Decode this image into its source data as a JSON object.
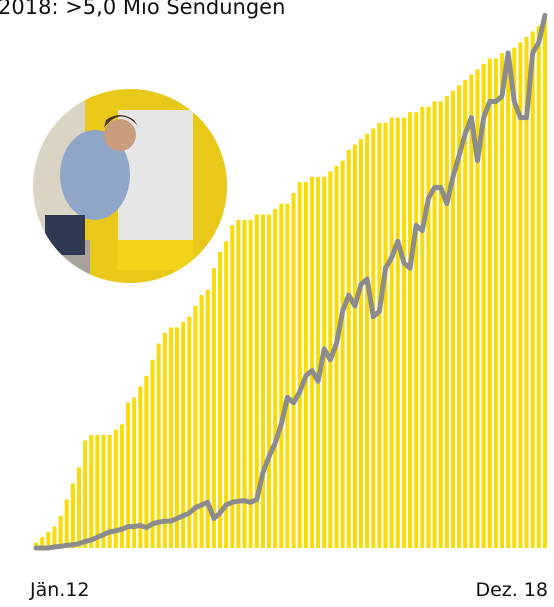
{
  "chart_data": {
    "type": "bar-line",
    "title": "2018: >5,0 Mio Sendungen",
    "categories": [
      "Jän.12",
      null,
      null,
      null,
      null,
      null,
      null,
      null,
      null,
      null,
      null,
      null,
      null,
      null,
      null,
      null,
      null,
      null,
      null,
      null,
      null,
      null,
      null,
      null,
      null,
      null,
      null,
      null,
      null,
      null,
      null,
      null,
      null,
      null,
      null,
      null,
      null,
      null,
      null,
      null,
      null,
      null,
      null,
      null,
      null,
      null,
      null,
      null,
      null,
      null,
      null,
      null,
      null,
      null,
      null,
      null,
      null,
      null,
      null,
      null,
      null,
      null,
      null,
      null,
      null,
      null,
      null,
      null,
      null,
      null,
      null,
      null,
      null,
      null,
      null,
      null,
      null,
      null,
      null,
      null,
      null,
      null,
      null,
      "Dez. 18"
    ],
    "series": [
      {
        "color": "#f6dc0a",
        "values": [
          1,
          2,
          3,
          4,
          6,
          9,
          12,
          15,
          20,
          21,
          21,
          21,
          21,
          22,
          23,
          27,
          28,
          30,
          32,
          35,
          38,
          40,
          41,
          41,
          42,
          43,
          45,
          47,
          48,
          52,
          55,
          57,
          60,
          61,
          61,
          61,
          62,
          62,
          62,
          63,
          64,
          64,
          66,
          68,
          68,
          69,
          69,
          69,
          70,
          71,
          72,
          74,
          75,
          76,
          77,
          78,
          79,
          79,
          80,
          80,
          80,
          81,
          81,
          82,
          82,
          83,
          83,
          84,
          85,
          86,
          87,
          88,
          89,
          90,
          91,
          91,
          92,
          92,
          93,
          94,
          95,
          96,
          97,
          99
        ]
      },
      {
        "color": "#8c8c8c",
        "values": [
          0,
          0,
          0,
          0.2,
          0.3,
          0.5,
          0.6,
          0.8,
          1.2,
          1.5,
          2,
          2.5,
          3,
          3.2,
          3.5,
          4,
          4,
          4.2,
          3.8,
          4.5,
          4.8,
          5,
          5,
          5.5,
          6,
          6.5,
          7.5,
          8,
          8.5,
          5.5,
          6.5,
          8,
          8.5,
          8.7,
          8.8,
          8.5,
          9,
          14,
          17,
          19.5,
          23,
          28,
          27,
          29,
          32,
          33,
          31,
          37,
          35,
          38,
          44,
          47,
          45,
          49,
          50,
          43,
          44,
          52,
          54,
          57,
          53,
          52,
          60,
          59,
          65,
          67,
          67,
          64,
          69,
          73,
          77,
          80,
          72,
          80,
          83,
          83,
          84,
          92,
          83,
          80,
          80,
          92,
          94,
          99
        ]
      }
    ],
    "ylim": [
      0,
      100
    ]
  }
}
